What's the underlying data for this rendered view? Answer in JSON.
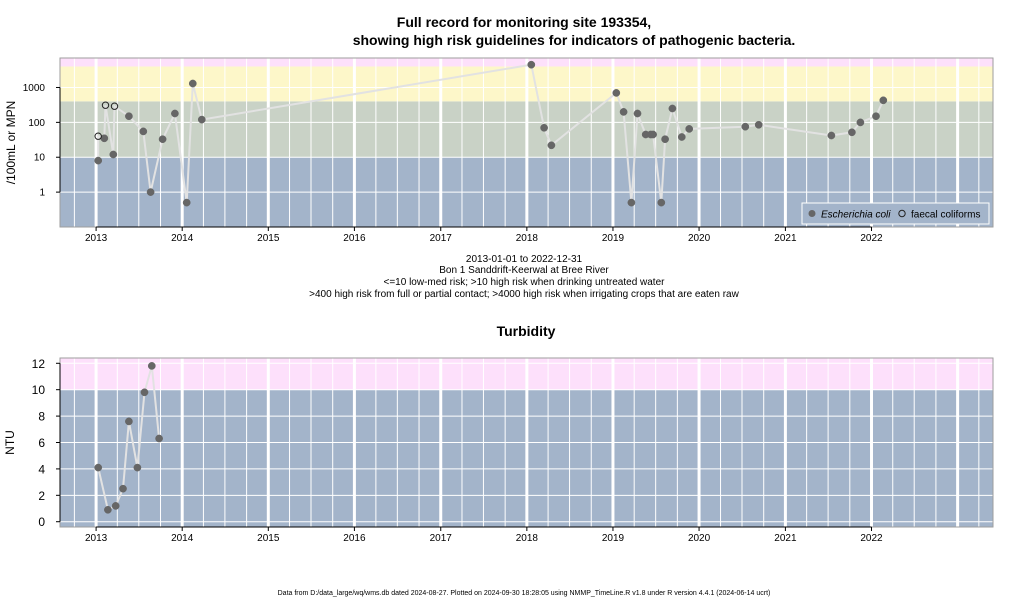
{
  "title_line1": "Full record for monitoring site 193354,",
  "title_line2": "showing high risk guidelines for indicators of pathogenic bacteria.",
  "subtitle_lines": [
    "2013-01-01 to 2022-12-31",
    "Bon 1 Sanddrift-Keerwal at Bree River",
    "<=10 low-med risk; >10 high risk when drinking untreated water",
    ">400 high risk from full or partial contact; >4000 high risk when irrigating crops that are eaten raw"
  ],
  "footer": "Data from D:/data_large/wq/wms.db dated 2024-08-27. Plotted on 2024-09-30 18:28:05 using NMMP_TimeLine.R v1.8 under R version 4.4.1 (2024-06-14 ucrt)",
  "colors": {
    "band_blue": "#a3b4ca",
    "band_green": "#c9d2c6",
    "band_yellow": "#fdf7c9",
    "band_pink": "#fde0fb",
    "point": "#666666",
    "line": "#e2e2e2",
    "grid": "#ffffff"
  },
  "chart_data": [
    {
      "type": "scatter",
      "title": "",
      "ylabel": "/100mL or MPN",
      "yscale": "log",
      "ylim": [
        0.1,
        7000
      ],
      "yticks": [
        1,
        10,
        100,
        1000
      ],
      "ytick_labels": [
        "1",
        "10",
        "100",
        "1000"
      ],
      "xlim": [
        "2012-08-01",
        "2023-05-31"
      ],
      "xticks": [
        "2013-01-01",
        "2014-01-01",
        "2015-01-01",
        "2016-01-01",
        "2017-01-01",
        "2018-01-01",
        "2019-01-01",
        "2020-01-01",
        "2021-01-01",
        "2022-01-01"
      ],
      "xtick_labels": [
        "2013",
        "2014",
        "2015",
        "2016",
        "2017",
        "2018",
        "2019",
        "2020",
        "2021",
        "2022"
      ],
      "bands": [
        {
          "from": 0.1,
          "to": 10,
          "color": "#a3b4ca"
        },
        {
          "from": 10,
          "to": 400,
          "color": "#c9d2c6"
        },
        {
          "from": 400,
          "to": 4000,
          "color": "#fdf7c9"
        },
        {
          "from": 4000,
          "to": 7000,
          "color": "#fde0fb"
        }
      ],
      "legend": {
        "position": "bottom-right",
        "entries": [
          {
            "label": "Escherichia coli",
            "marker": "filled"
          },
          {
            "label": "faecal coliforms",
            "marker": "open"
          }
        ]
      },
      "series": [
        {
          "name": "Escherichia coli",
          "marker": "filled",
          "points": [
            [
              "2013-01-10",
              8
            ],
            [
              "2013-02-05",
              35
            ],
            [
              "2013-03-15",
              12
            ],
            [
              "2013-05-20",
              150
            ],
            [
              "2013-07-20",
              55
            ],
            [
              "2013-08-20",
              1
            ],
            [
              "2013-10-10",
              33
            ],
            [
              "2013-12-01",
              180
            ],
            [
              "2014-01-20",
              0.5
            ],
            [
              "2014-02-15",
              1300
            ],
            [
              "2014-03-25",
              120
            ],
            [
              "2018-01-20",
              4500
            ],
            [
              "2018-03-15",
              70
            ],
            [
              "2018-04-15",
              22
            ],
            [
              "2019-01-15",
              700
            ],
            [
              "2019-02-15",
              200
            ],
            [
              "2019-03-20",
              0.5
            ],
            [
              "2019-04-15",
              180
            ],
            [
              "2019-05-20",
              45
            ],
            [
              "2019-06-10",
              45
            ],
            [
              "2019-06-20",
              45
            ],
            [
              "2019-07-25",
              0.5
            ],
            [
              "2019-08-10",
              33
            ],
            [
              "2019-09-10",
              250
            ],
            [
              "2019-10-20",
              38
            ],
            [
              "2019-11-20",
              65
            ],
            [
              "2020-07-15",
              75
            ],
            [
              "2020-09-10",
              85
            ],
            [
              "2021-07-15",
              42
            ],
            [
              "2021-10-10",
              52
            ],
            [
              "2021-11-15",
              100
            ],
            [
              "2022-01-20",
              150
            ],
            [
              "2022-02-20",
              430
            ]
          ]
        },
        {
          "name": "faecal coliforms",
          "marker": "open",
          "points": [
            [
              "2013-01-10",
              40
            ],
            [
              "2013-02-10",
              310
            ],
            [
              "2013-03-20",
              290
            ]
          ]
        }
      ]
    },
    {
      "type": "scatter",
      "title": "Turbidity",
      "ylabel": "NTU",
      "ylim": [
        -0.4,
        12.4
      ],
      "yticks": [
        0,
        2,
        4,
        6,
        8,
        10,
        12
      ],
      "ytick_labels": [
        "0",
        "2",
        "4",
        "6",
        "8",
        "10",
        "12"
      ],
      "xlim": [
        "2012-08-01",
        "2023-05-31"
      ],
      "xticks": [
        "2013-01-01",
        "2014-01-01",
        "2015-01-01",
        "2016-01-01",
        "2017-01-01",
        "2018-01-01",
        "2019-01-01",
        "2020-01-01",
        "2021-01-01",
        "2022-01-01"
      ],
      "xtick_labels": [
        "2013",
        "2014",
        "2015",
        "2016",
        "2017",
        "2018",
        "2019",
        "2020",
        "2021",
        "2022"
      ],
      "bands": [
        {
          "from": -0.4,
          "to": 10,
          "color": "#a3b4ca"
        },
        {
          "from": 10,
          "to": 12.4,
          "color": "#fde0fb"
        }
      ],
      "series": [
        {
          "marker": "filled",
          "points": [
            [
              "2013-01-10",
              4.1
            ],
            [
              "2013-02-20",
              0.9
            ],
            [
              "2013-03-25",
              1.2
            ],
            [
              "2013-04-25",
              2.5
            ],
            [
              "2013-05-20",
              7.6
            ],
            [
              "2013-06-25",
              4.1
            ],
            [
              "2013-07-25",
              9.8
            ],
            [
              "2013-08-25",
              11.8
            ],
            [
              "2013-09-25",
              6.3
            ]
          ]
        }
      ]
    }
  ]
}
